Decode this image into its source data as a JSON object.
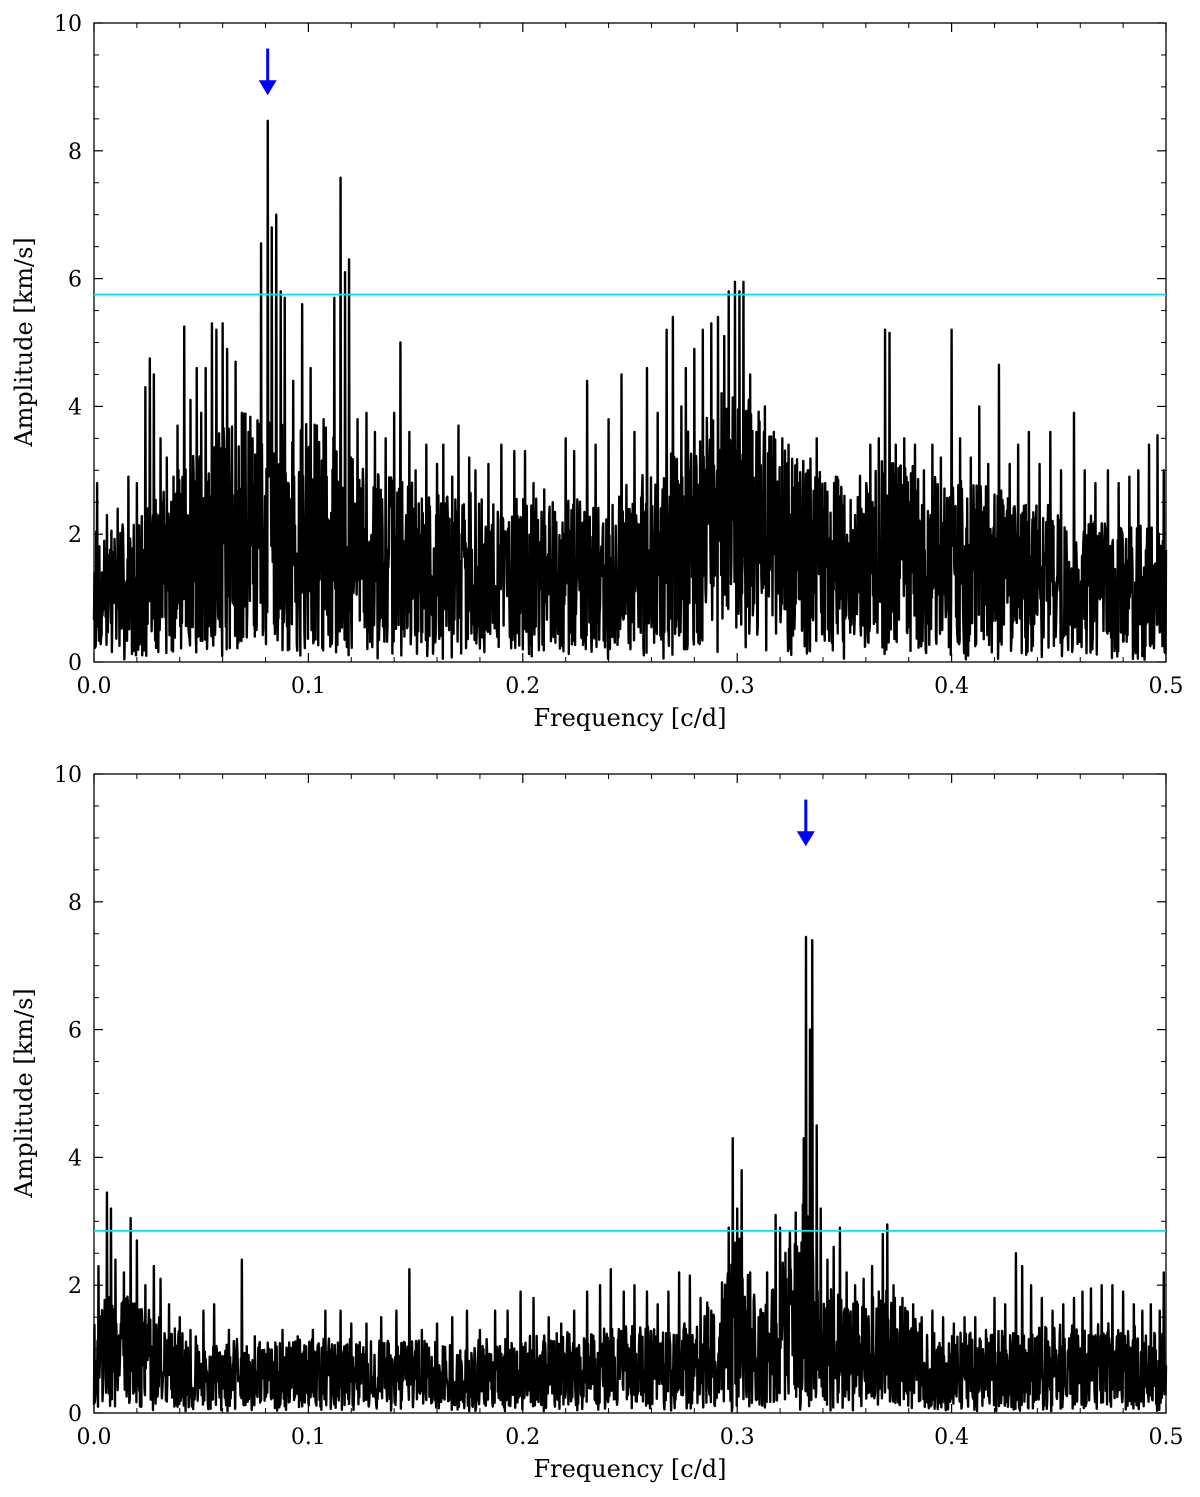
{
  "chart_data": [
    {
      "type": "line",
      "panel": "top",
      "xlabel": "Frequency [c/d]",
      "ylabel": "Amplitude [km/s]",
      "xlim": [
        0.0,
        0.5
      ],
      "ylim": [
        0,
        10
      ],
      "x_ticks": [
        0.0,
        0.1,
        0.2,
        0.3,
        0.4,
        0.5
      ],
      "x_tick_labels": [
        "0.0",
        "0.1",
        "0.2",
        "0.3",
        "0.4",
        "0.5"
      ],
      "y_ticks": [
        0,
        2,
        4,
        6,
        8,
        10
      ],
      "y_tick_labels": [
        "0",
        "2",
        "4",
        "6",
        "8",
        "10"
      ],
      "grid": false,
      "line_color": "#000000",
      "threshold": {
        "value": 5.75,
        "color": "#00e5ee"
      },
      "arrow": {
        "x": 0.081,
        "y_from": 9.6,
        "y_to": 8.9,
        "color": "#0000ff"
      },
      "baseline": [
        [
          0.0,
          1.3
        ],
        [
          0.02,
          1.4
        ],
        [
          0.04,
          1.9
        ],
        [
          0.06,
          2.3
        ],
        [
          0.075,
          2.5
        ],
        [
          0.09,
          2.4
        ],
        [
          0.11,
          2.3
        ],
        [
          0.13,
          1.9
        ],
        [
          0.16,
          1.7
        ],
        [
          0.2,
          1.6
        ],
        [
          0.24,
          1.6
        ],
        [
          0.27,
          2.1
        ],
        [
          0.3,
          2.8
        ],
        [
          0.32,
          2.2
        ],
        [
          0.35,
          1.8
        ],
        [
          0.37,
          2.0
        ],
        [
          0.4,
          1.8
        ],
        [
          0.44,
          1.6
        ],
        [
          0.47,
          1.4
        ],
        [
          0.5,
          1.3
        ]
      ],
      "peaks": [
        [
          0.0015,
          2.8
        ],
        [
          0.006,
          2.3
        ],
        [
          0.011,
          2.4
        ],
        [
          0.016,
          2.9
        ],
        [
          0.02,
          2.8
        ],
        [
          0.024,
          4.3
        ],
        [
          0.026,
          4.75
        ],
        [
          0.028,
          4.5
        ],
        [
          0.031,
          3.5
        ],
        [
          0.034,
          3.2
        ],
        [
          0.037,
          2.9
        ],
        [
          0.039,
          3.7
        ],
        [
          0.042,
          5.25
        ],
        [
          0.045,
          4.1
        ],
        [
          0.048,
          4.6
        ],
        [
          0.05,
          3.9
        ],
        [
          0.052,
          4.6
        ],
        [
          0.055,
          5.3
        ],
        [
          0.057,
          5.2
        ],
        [
          0.06,
          5.3
        ],
        [
          0.062,
          4.9
        ],
        [
          0.066,
          4.7
        ],
        [
          0.069,
          3.9
        ],
        [
          0.072,
          3.6
        ],
        [
          0.074,
          3.5
        ],
        [
          0.078,
          6.55
        ],
        [
          0.081,
          8.47
        ],
        [
          0.083,
          6.8
        ],
        [
          0.085,
          7.0
        ],
        [
          0.087,
          5.8
        ],
        [
          0.089,
          5.7
        ],
        [
          0.093,
          4.4
        ],
        [
          0.097,
          5.6
        ],
        [
          0.101,
          4.6
        ],
        [
          0.104,
          3.7
        ],
        [
          0.107,
          3.8
        ],
        [
          0.112,
          5.7
        ],
        [
          0.115,
          7.58
        ],
        [
          0.117,
          6.1
        ],
        [
          0.119,
          6.3
        ],
        [
          0.123,
          3.8
        ],
        [
          0.127,
          3.9
        ],
        [
          0.131,
          3.6
        ],
        [
          0.136,
          3.5
        ],
        [
          0.14,
          3.9
        ],
        [
          0.143,
          5.0
        ],
        [
          0.147,
          3.6
        ],
        [
          0.15,
          3.0
        ],
        [
          0.155,
          3.4
        ],
        [
          0.16,
          3.1
        ],
        [
          0.163,
          3.4
        ],
        [
          0.167,
          2.9
        ],
        [
          0.17,
          3.7
        ],
        [
          0.175,
          3.2
        ],
        [
          0.178,
          3.0
        ],
        [
          0.184,
          3.1
        ],
        [
          0.19,
          3.4
        ],
        [
          0.196,
          3.3
        ],
        [
          0.201,
          3.3
        ],
        [
          0.205,
          2.8
        ],
        [
          0.21,
          2.7
        ],
        [
          0.214,
          2.5
        ],
        [
          0.22,
          3.5
        ],
        [
          0.224,
          3.3
        ],
        [
          0.23,
          4.4
        ],
        [
          0.234,
          3.4
        ],
        [
          0.24,
          3.8
        ],
        [
          0.246,
          4.5
        ],
        [
          0.252,
          3.6
        ],
        [
          0.258,
          4.6
        ],
        [
          0.263,
          3.9
        ],
        [
          0.267,
          5.2
        ],
        [
          0.27,
          5.4
        ],
        [
          0.274,
          4.0
        ],
        [
          0.276,
          4.6
        ],
        [
          0.28,
          4.9
        ],
        [
          0.284,
          5.2
        ],
        [
          0.288,
          5.3
        ],
        [
          0.291,
          5.4
        ],
        [
          0.294,
          5.1
        ],
        [
          0.296,
          5.8
        ],
        [
          0.299,
          5.95
        ],
        [
          0.301,
          5.8
        ],
        [
          0.303,
          5.95
        ],
        [
          0.306,
          4.5
        ],
        [
          0.309,
          3.6
        ],
        [
          0.313,
          4.0
        ],
        [
          0.317,
          3.6
        ],
        [
          0.321,
          3.5
        ],
        [
          0.324,
          3.4
        ],
        [
          0.329,
          2.8
        ],
        [
          0.333,
          3.0
        ],
        [
          0.337,
          3.5
        ],
        [
          0.341,
          2.8
        ],
        [
          0.346,
          2.9
        ],
        [
          0.35,
          2.6
        ],
        [
          0.355,
          2.3
        ],
        [
          0.358,
          2.4
        ],
        [
          0.362,
          3.4
        ],
        [
          0.366,
          3.5
        ],
        [
          0.369,
          5.2
        ],
        [
          0.371,
          5.15
        ],
        [
          0.374,
          3.4
        ],
        [
          0.378,
          3.5
        ],
        [
          0.383,
          3.4
        ],
        [
          0.387,
          3.0
        ],
        [
          0.391,
          3.4
        ],
        [
          0.395,
          3.2
        ],
        [
          0.4,
          5.2
        ],
        [
          0.404,
          3.5
        ],
        [
          0.409,
          3.2
        ],
        [
          0.413,
          4.0
        ],
        [
          0.417,
          3.1
        ],
        [
          0.422,
          4.65
        ],
        [
          0.427,
          3.1
        ],
        [
          0.431,
          3.4
        ],
        [
          0.436,
          3.6
        ],
        [
          0.441,
          3.1
        ],
        [
          0.446,
          3.6
        ],
        [
          0.451,
          3.0
        ],
        [
          0.457,
          3.9
        ],
        [
          0.462,
          3.0
        ],
        [
          0.467,
          2.8
        ],
        [
          0.473,
          3.0
        ],
        [
          0.478,
          2.8
        ],
        [
          0.483,
          2.9
        ],
        [
          0.487,
          3.0
        ],
        [
          0.492,
          3.4
        ],
        [
          0.496,
          3.55
        ],
        [
          0.499,
          3.0
        ]
      ]
    },
    {
      "type": "line",
      "panel": "bottom",
      "xlabel": "Frequency [c/d]",
      "ylabel": "Amplitude [km/s]",
      "xlim": [
        0.0,
        0.5
      ],
      "ylim": [
        0,
        10
      ],
      "x_ticks": [
        0.0,
        0.1,
        0.2,
        0.3,
        0.4,
        0.5
      ],
      "x_tick_labels": [
        "0.0",
        "0.1",
        "0.2",
        "0.3",
        "0.4",
        "0.5"
      ],
      "y_ticks": [
        0,
        2,
        4,
        6,
        8,
        10
      ],
      "y_tick_labels": [
        "0",
        "2",
        "4",
        "6",
        "8",
        "10"
      ],
      "grid": false,
      "line_color": "#000000",
      "threshold": {
        "value": 2.85,
        "color": "#00e5ee"
      },
      "arrow": {
        "x": 0.332,
        "y_from": 9.6,
        "y_to": 8.9,
        "color": "#0000ff"
      },
      "baseline": [
        [
          0.0,
          1.0
        ],
        [
          0.01,
          1.3
        ],
        [
          0.02,
          1.1
        ],
        [
          0.04,
          0.8
        ],
        [
          0.08,
          0.7
        ],
        [
          0.12,
          0.75
        ],
        [
          0.16,
          0.7
        ],
        [
          0.2,
          0.75
        ],
        [
          0.25,
          0.85
        ],
        [
          0.28,
          0.9
        ],
        [
          0.295,
          1.4
        ],
        [
          0.3,
          1.8
        ],
        [
          0.31,
          1.0
        ],
        [
          0.32,
          1.4
        ],
        [
          0.33,
          2.3
        ],
        [
          0.34,
          1.3
        ],
        [
          0.35,
          1.1
        ],
        [
          0.37,
          1.2
        ],
        [
          0.39,
          0.8
        ],
        [
          0.42,
          0.8
        ],
        [
          0.45,
          0.9
        ],
        [
          0.47,
          0.9
        ],
        [
          0.5,
          0.8
        ]
      ],
      "peaks": [
        [
          0.002,
          2.3
        ],
        [
          0.006,
          3.45
        ],
        [
          0.008,
          3.2
        ],
        [
          0.01,
          2.4
        ],
        [
          0.014,
          2.2
        ],
        [
          0.017,
          3.05
        ],
        [
          0.02,
          2.7
        ],
        [
          0.024,
          2.0
        ],
        [
          0.028,
          2.3
        ],
        [
          0.031,
          2.1
        ],
        [
          0.035,
          1.7
        ],
        [
          0.04,
          1.5
        ],
        [
          0.045,
          1.3
        ],
        [
          0.051,
          1.6
        ],
        [
          0.056,
          1.7
        ],
        [
          0.063,
          1.3
        ],
        [
          0.069,
          2.4
        ],
        [
          0.075,
          1.2
        ],
        [
          0.081,
          1.1
        ],
        [
          0.088,
          1.3
        ],
        [
          0.095,
          1.2
        ],
        [
          0.102,
          1.3
        ],
        [
          0.108,
          1.6
        ],
        [
          0.115,
          1.6
        ],
        [
          0.12,
          1.4
        ],
        [
          0.127,
          1.4
        ],
        [
          0.134,
          1.5
        ],
        [
          0.141,
          1.6
        ],
        [
          0.147,
          2.25
        ],
        [
          0.153,
          1.3
        ],
        [
          0.16,
          1.4
        ],
        [
          0.167,
          1.5
        ],
        [
          0.174,
          1.6
        ],
        [
          0.18,
          1.3
        ],
        [
          0.187,
          1.6
        ],
        [
          0.193,
          1.6
        ],
        [
          0.199,
          1.9
        ],
        [
          0.205,
          1.8
        ],
        [
          0.212,
          1.5
        ],
        [
          0.218,
          1.4
        ],
        [
          0.224,
          1.6
        ],
        [
          0.23,
          1.9
        ],
        [
          0.236,
          2.0
        ],
        [
          0.241,
          2.25
        ],
        [
          0.247,
          1.9
        ],
        [
          0.252,
          2.0
        ],
        [
          0.258,
          1.9
        ],
        [
          0.263,
          1.7
        ],
        [
          0.268,
          1.9
        ],
        [
          0.273,
          2.2
        ],
        [
          0.278,
          2.15
        ],
        [
          0.283,
          1.8
        ],
        [
          0.288,
          1.6
        ],
        [
          0.292,
          1.4
        ],
        [
          0.296,
          2.9
        ],
        [
          0.298,
          4.3
        ],
        [
          0.3,
          3.2
        ],
        [
          0.302,
          3.8
        ],
        [
          0.306,
          2.2
        ],
        [
          0.31,
          1.5
        ],
        [
          0.314,
          2.2
        ],
        [
          0.318,
          3.1
        ],
        [
          0.32,
          2.9
        ],
        [
          0.323,
          2.1
        ],
        [
          0.326,
          1.9
        ],
        [
          0.329,
          2.5
        ],
        [
          0.331,
          4.3
        ],
        [
          0.332,
          7.45
        ],
        [
          0.334,
          6.0
        ],
        [
          0.335,
          7.4
        ],
        [
          0.337,
          4.5
        ],
        [
          0.339,
          3.2
        ],
        [
          0.342,
          2.4
        ],
        [
          0.345,
          2.6
        ],
        [
          0.348,
          2.9
        ],
        [
          0.351,
          2.2
        ],
        [
          0.355,
          2.0
        ],
        [
          0.359,
          2.1
        ],
        [
          0.363,
          2.3
        ],
        [
          0.366,
          1.9
        ],
        [
          0.368,
          2.8
        ],
        [
          0.37,
          2.95
        ],
        [
          0.373,
          2.0
        ],
        [
          0.377,
          1.8
        ],
        [
          0.382,
          1.7
        ],
        [
          0.386,
          1.5
        ],
        [
          0.391,
          1.6
        ],
        [
          0.396,
          1.5
        ],
        [
          0.401,
          1.4
        ],
        [
          0.406,
          1.5
        ],
        [
          0.411,
          1.5
        ],
        [
          0.416,
          1.3
        ],
        [
          0.42,
          1.8
        ],
        [
          0.425,
          1.7
        ],
        [
          0.43,
          2.5
        ],
        [
          0.433,
          2.3
        ],
        [
          0.437,
          2.0
        ],
        [
          0.442,
          1.8
        ],
        [
          0.447,
          1.6
        ],
        [
          0.452,
          1.7
        ],
        [
          0.457,
          1.8
        ],
        [
          0.461,
          1.9
        ],
        [
          0.465,
          1.95
        ],
        [
          0.47,
          2.0
        ],
        [
          0.475,
          2.0
        ],
        [
          0.48,
          1.9
        ],
        [
          0.485,
          1.7
        ],
        [
          0.489,
          1.6
        ],
        [
          0.493,
          1.7
        ],
        [
          0.497,
          1.6
        ],
        [
          0.499,
          2.2
        ]
      ]
    }
  ]
}
